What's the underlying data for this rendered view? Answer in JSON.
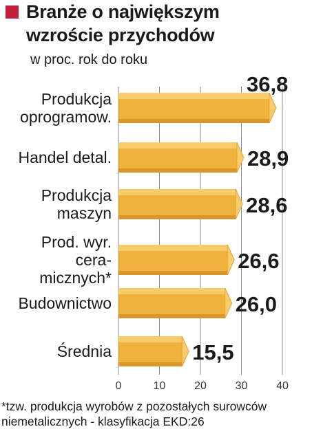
{
  "header": {
    "title_line1": "Branże o największym",
    "title_line2": "wzroście przychodów",
    "subtitle": "w proc. rok do roku",
    "accent_color": "#c41e3a"
  },
  "footnote": {
    "line1": "*tzw. produkcja wyrobów z pozostałych surowców",
    "line2": "niemetalicznych - klasyfikacja EKD:26"
  },
  "chart_data": {
    "type": "bar",
    "orientation": "horizontal",
    "title": "Branże o największym wzroście przychodów",
    "subtitle": "w proc. rok do roku",
    "categories": [
      [
        "Produkcja",
        "oprogramow."
      ],
      [
        "Handel detal."
      ],
      [
        "Produkcja",
        "maszyn"
      ],
      [
        "Prod. wyr.",
        "cera-",
        "micznych*"
      ],
      [
        "Budownictwo"
      ],
      [
        "Średnia"
      ]
    ],
    "values": [
      36.8,
      28.9,
      28.6,
      26.6,
      26.0,
      15.5
    ],
    "value_labels": [
      "36,8",
      "28,9",
      "28,6",
      "26,6",
      "26,0",
      "15,5"
    ],
    "xlim": [
      0,
      40
    ],
    "xticks": [
      "0",
      "10",
      "20",
      "30",
      "40"
    ],
    "grid": true,
    "bar_color": "#f0b23c",
    "bar_highlight": "#f7cd6c",
    "bar_shadow": "#d9962a"
  }
}
